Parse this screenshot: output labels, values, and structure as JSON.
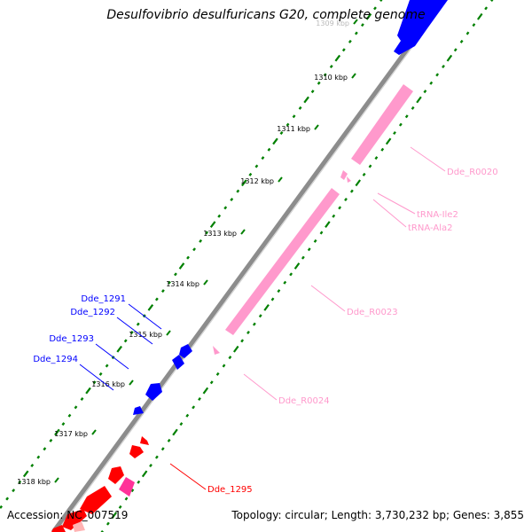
{
  "title": "Desulfovibrio desulfuricans G20, complete genome",
  "scale_ticks": [
    {
      "label": "1309 kbp"
    },
    {
      "label": "1310 kbp"
    },
    {
      "label": "1311 kbp"
    },
    {
      "label": "1312 kbp"
    },
    {
      "label": "1313 kbp"
    },
    {
      "label": "1314 kbp"
    },
    {
      "label": "1315 kbp"
    },
    {
      "label": "1316 kbp"
    },
    {
      "label": "1317 kbp"
    },
    {
      "label": "1318 kbp"
    }
  ],
  "features": [
    {
      "label": "Dde_1291",
      "strand": "reverse",
      "type": "CDS",
      "color": "#0000ff"
    },
    {
      "label": "Dde_1292",
      "strand": "reverse",
      "type": "CDS",
      "color": "#0000ff"
    },
    {
      "label": "Dde_1293",
      "strand": "reverse",
      "type": "CDS",
      "color": "#0000ff"
    },
    {
      "label": "Dde_1294",
      "strand": "reverse",
      "type": "CDS",
      "color": "#0000ff"
    },
    {
      "label": "Dde_R0020",
      "strand": "forward",
      "type": "rRNA",
      "color": "#ff99cc"
    },
    {
      "label": "tRNA-Ile2",
      "strand": "forward",
      "type": "tRNA",
      "color": "#ff99cc"
    },
    {
      "label": "tRNA-Ala2",
      "strand": "forward",
      "type": "tRNA",
      "color": "#ff99cc"
    },
    {
      "label": "Dde_R0023",
      "strand": "forward",
      "type": "rRNA",
      "color": "#ff99cc"
    },
    {
      "label": "Dde_R0024",
      "strand": "forward",
      "type": "rRNA",
      "color": "#ff99cc"
    },
    {
      "label": "Dde_1295",
      "strand": "forward",
      "type": "CDS",
      "color": "#ff0000"
    }
  ],
  "colors": {
    "backbone": "#808080",
    "gc_track": "#008000",
    "cds_reverse": "#0000ff",
    "cds_forward": "#ff0000",
    "rna": "#ff99cc",
    "other": "#ff3399"
  },
  "footer": {
    "accession": "Accession: NC_007519",
    "stats": "Topology: circular; Length: 3,730,232 bp; Genes: 3,855"
  }
}
